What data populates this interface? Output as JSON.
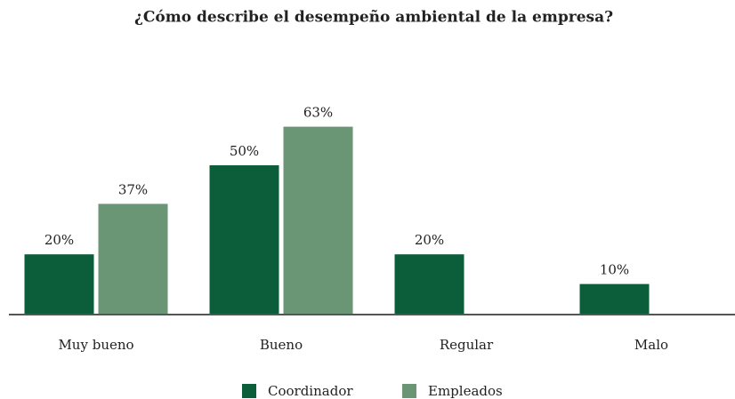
{
  "chart_data": {
    "type": "bar",
    "title": "¿Cómo describe el desempeño ambiental de la empresa?",
    "categories": [
      "Muy bueno",
      "Bueno",
      "Regular",
      "Malo"
    ],
    "series": [
      {
        "name": "Coordinador",
        "color": "#0b5e39",
        "values": [
          20,
          50,
          20,
          10
        ],
        "value_labels": [
          "20%",
          "50%",
          "20%",
          "10%"
        ]
      },
      {
        "name": "Empleados",
        "color": "#6b9676",
        "values": [
          37,
          63,
          null,
          null
        ],
        "value_labels": [
          "37%",
          "63%",
          null,
          null
        ]
      }
    ]
  }
}
